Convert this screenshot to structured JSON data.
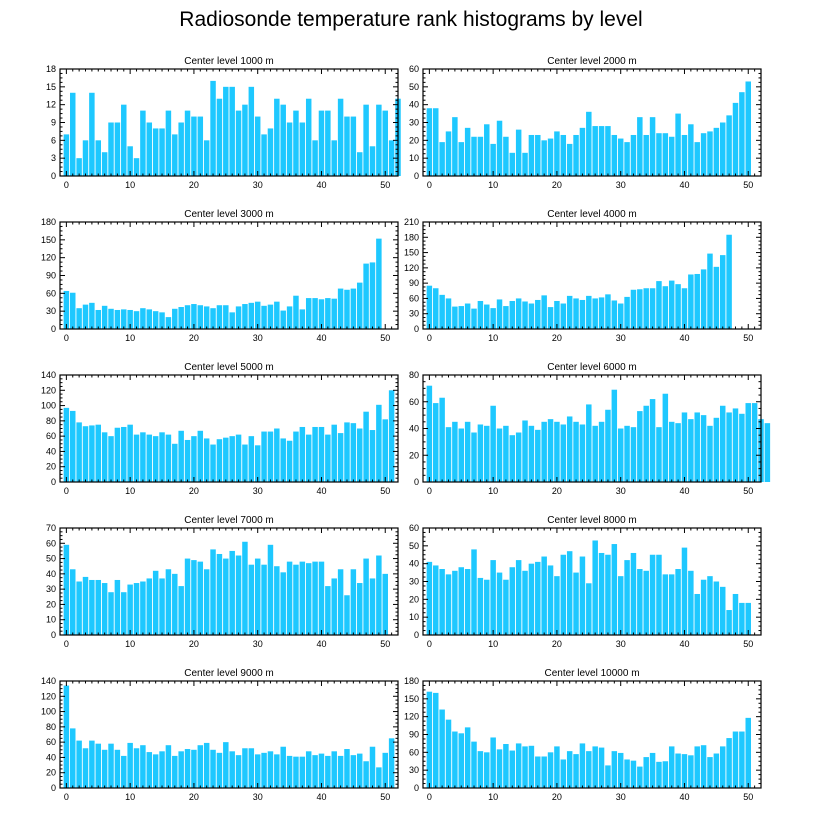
{
  "title": "Radiosonde temperature rank histograms by level",
  "colors": {
    "bar": "#1EC8FF",
    "axis": "#000000",
    "background": "#ffffff"
  },
  "chart_data": [
    {
      "type": "bar",
      "title": "Center level 1000 m",
      "x_ticks": [
        0,
        10,
        20,
        30,
        40,
        50
      ],
      "xlim": [
        -1,
        52
      ],
      "ylim": [
        0,
        18
      ],
      "y_ticks": [
        0,
        3,
        6,
        9,
        12,
        15,
        18
      ],
      "values": [
        7,
        14,
        3,
        6,
        14,
        6,
        4,
        9,
        9,
        12,
        5,
        3,
        11,
        9,
        8,
        8,
        11,
        7,
        9,
        11,
        10,
        10,
        6,
        16,
        13,
        15,
        15,
        11,
        12,
        15,
        10,
        7,
        8,
        13,
        12,
        9,
        11,
        9,
        13,
        6,
        11,
        11,
        6,
        13,
        10,
        10,
        4,
        12,
        5,
        12,
        11,
        6,
        13
      ]
    },
    {
      "type": "bar",
      "title": "Center level 2000 m",
      "x_ticks": [
        0,
        10,
        20,
        30,
        40,
        50
      ],
      "xlim": [
        -1,
        52
      ],
      "ylim": [
        0,
        60
      ],
      "y_ticks": [
        0,
        10,
        20,
        30,
        40,
        50,
        60
      ],
      "values": [
        38,
        38,
        19,
        25,
        33,
        19,
        27,
        22,
        22,
        29,
        18,
        31,
        22,
        13,
        26,
        13,
        23,
        23,
        20,
        21,
        25,
        23,
        18,
        23,
        27,
        36,
        28,
        28,
        28,
        23,
        21,
        19,
        23,
        33,
        23,
        33,
        24,
        24,
        22,
        35,
        23,
        29,
        19,
        24,
        25,
        27,
        30,
        34,
        41,
        47,
        53
      ]
    },
    {
      "type": "bar",
      "title": "Center level 3000 m",
      "x_ticks": [
        0,
        10,
        20,
        30,
        40,
        50
      ],
      "xlim": [
        -1,
        52
      ],
      "ylim": [
        0,
        180
      ],
      "y_ticks": [
        0,
        30,
        60,
        90,
        120,
        150,
        180
      ],
      "values": [
        64,
        61,
        35,
        41,
        44,
        32,
        39,
        34,
        32,
        33,
        32,
        30,
        35,
        33,
        30,
        28,
        20,
        34,
        37,
        40,
        42,
        40,
        38,
        35,
        40,
        40,
        28,
        38,
        42,
        44,
        46,
        39,
        41,
        46,
        31,
        38,
        56,
        33,
        52,
        52,
        50,
        52,
        51,
        68,
        66,
        68,
        78,
        110,
        112,
        152
      ]
    },
    {
      "type": "bar",
      "title": "Center level 4000 m",
      "x_ticks": [
        0,
        10,
        20,
        30,
        40,
        50
      ],
      "xlim": [
        -1,
        52
      ],
      "ylim": [
        0,
        210
      ],
      "y_ticks": [
        0,
        30,
        60,
        90,
        120,
        150,
        180,
        210
      ],
      "values": [
        85,
        80,
        67,
        60,
        44,
        45,
        50,
        40,
        55,
        48,
        41,
        58,
        45,
        55,
        60,
        54,
        50,
        57,
        66,
        43,
        55,
        50,
        65,
        60,
        57,
        65,
        60,
        62,
        68,
        56,
        50,
        63,
        77,
        78,
        80,
        80,
        94,
        84,
        95,
        88,
        80,
        107,
        108,
        117,
        148,
        122,
        145,
        185
      ]
    },
    {
      "type": "bar",
      "title": "Center level 5000 m",
      "x_ticks": [
        0,
        10,
        20,
        30,
        40,
        50
      ],
      "xlim": [
        -1,
        52
      ],
      "ylim": [
        0,
        140
      ],
      "y_ticks": [
        0,
        20,
        40,
        60,
        80,
        100,
        120,
        140
      ],
      "values": [
        97,
        93,
        78,
        73,
        74,
        75,
        65,
        60,
        71,
        72,
        75,
        62,
        65,
        62,
        60,
        65,
        62,
        50,
        67,
        55,
        60,
        67,
        57,
        49,
        56,
        58,
        60,
        62,
        49,
        60,
        48,
        66,
        66,
        70,
        57,
        54,
        66,
        72,
        62,
        72,
        72,
        62,
        75,
        64,
        78,
        77,
        70,
        92,
        68,
        101,
        82,
        120
      ]
    },
    {
      "type": "bar",
      "title": "Center level 6000 m",
      "x_ticks": [
        0,
        10,
        20,
        30,
        40,
        50
      ],
      "xlim": [
        -1,
        52
      ],
      "ylim": [
        0,
        80
      ],
      "y_ticks": [
        0,
        20,
        40,
        60,
        80
      ],
      "values": [
        72,
        59,
        63,
        41,
        45,
        40,
        45,
        37,
        43,
        42,
        57,
        40,
        42,
        35,
        37,
        46,
        42,
        39,
        45,
        47,
        45,
        43,
        49,
        45,
        43,
        58,
        42,
        45,
        54,
        69,
        40,
        42,
        41,
        53,
        57,
        62,
        41,
        66,
        45,
        44,
        52,
        47,
        52,
        50,
        42,
        48,
        57,
        52,
        55,
        51,
        59,
        59,
        47,
        44
      ]
    },
    {
      "type": "bar",
      "title": "Center level 7000 m",
      "x_ticks": [
        0,
        10,
        20,
        30,
        40,
        50
      ],
      "xlim": [
        -1,
        52
      ],
      "ylim": [
        0,
        70
      ],
      "y_ticks": [
        0,
        10,
        20,
        30,
        40,
        50,
        60,
        70
      ],
      "values": [
        59,
        43,
        35,
        38,
        36,
        36,
        34,
        28,
        36,
        28,
        33,
        34,
        35,
        37,
        42,
        37,
        43,
        40,
        32,
        50,
        49,
        48,
        43,
        56,
        53,
        50,
        55,
        52,
        61,
        46,
        50,
        46,
        59,
        45,
        41,
        48,
        46,
        48,
        47,
        48,
        48,
        32,
        37,
        43,
        26,
        43,
        34,
        50,
        37,
        52,
        40
      ]
    },
    {
      "type": "bar",
      "title": "Center level 8000 m",
      "x_ticks": [
        0,
        10,
        20,
        30,
        40,
        50
      ],
      "xlim": [
        -1,
        52
      ],
      "ylim": [
        0,
        60
      ],
      "y_ticks": [
        0,
        10,
        20,
        30,
        40,
        50,
        60
      ],
      "values": [
        41,
        39,
        37,
        34,
        36,
        38,
        37,
        48,
        32,
        31,
        42,
        35,
        31,
        38,
        42,
        36,
        40,
        41,
        44,
        39,
        33,
        45,
        47,
        35,
        44,
        29,
        53,
        46,
        45,
        51,
        33,
        42,
        46,
        37,
        36,
        45,
        45,
        34,
        34,
        37,
        49,
        36,
        23,
        31,
        33,
        30,
        27,
        14,
        23,
        18,
        18
      ]
    },
    {
      "type": "bar",
      "title": "Center level 9000 m",
      "x_ticks": [
        0,
        10,
        20,
        30,
        40,
        50
      ],
      "xlim": [
        -1,
        52
      ],
      "ylim": [
        0,
        140
      ],
      "y_ticks": [
        0,
        20,
        40,
        60,
        80,
        100,
        120,
        140
      ],
      "values": [
        134,
        78,
        62,
        52,
        62,
        58,
        50,
        58,
        50,
        42,
        59,
        52,
        56,
        47,
        44,
        48,
        56,
        42,
        48,
        51,
        50,
        56,
        59,
        50,
        46,
        60,
        48,
        43,
        52,
        52,
        44,
        46,
        48,
        44,
        54,
        42,
        41,
        41,
        48,
        43,
        45,
        42,
        48,
        42,
        51,
        43,
        45,
        35,
        54,
        27,
        46,
        65
      ]
    },
    {
      "type": "bar",
      "title": "Center level 10000 m",
      "x_ticks": [
        0,
        10,
        20,
        30,
        40,
        50
      ],
      "xlim": [
        -1,
        52
      ],
      "ylim": [
        0,
        180
      ],
      "y_ticks": [
        0,
        30,
        60,
        90,
        120,
        150,
        180
      ],
      "values": [
        162,
        160,
        132,
        115,
        95,
        92,
        102,
        78,
        62,
        60,
        85,
        65,
        74,
        63,
        75,
        70,
        71,
        53,
        53,
        60,
        70,
        48,
        62,
        57,
        75,
        62,
        70,
        68,
        38,
        62,
        59,
        48,
        46,
        36,
        52,
        59,
        44,
        45,
        70,
        58,
        57,
        55,
        70,
        72,
        52,
        58,
        70,
        84,
        95,
        95,
        118
      ]
    }
  ]
}
